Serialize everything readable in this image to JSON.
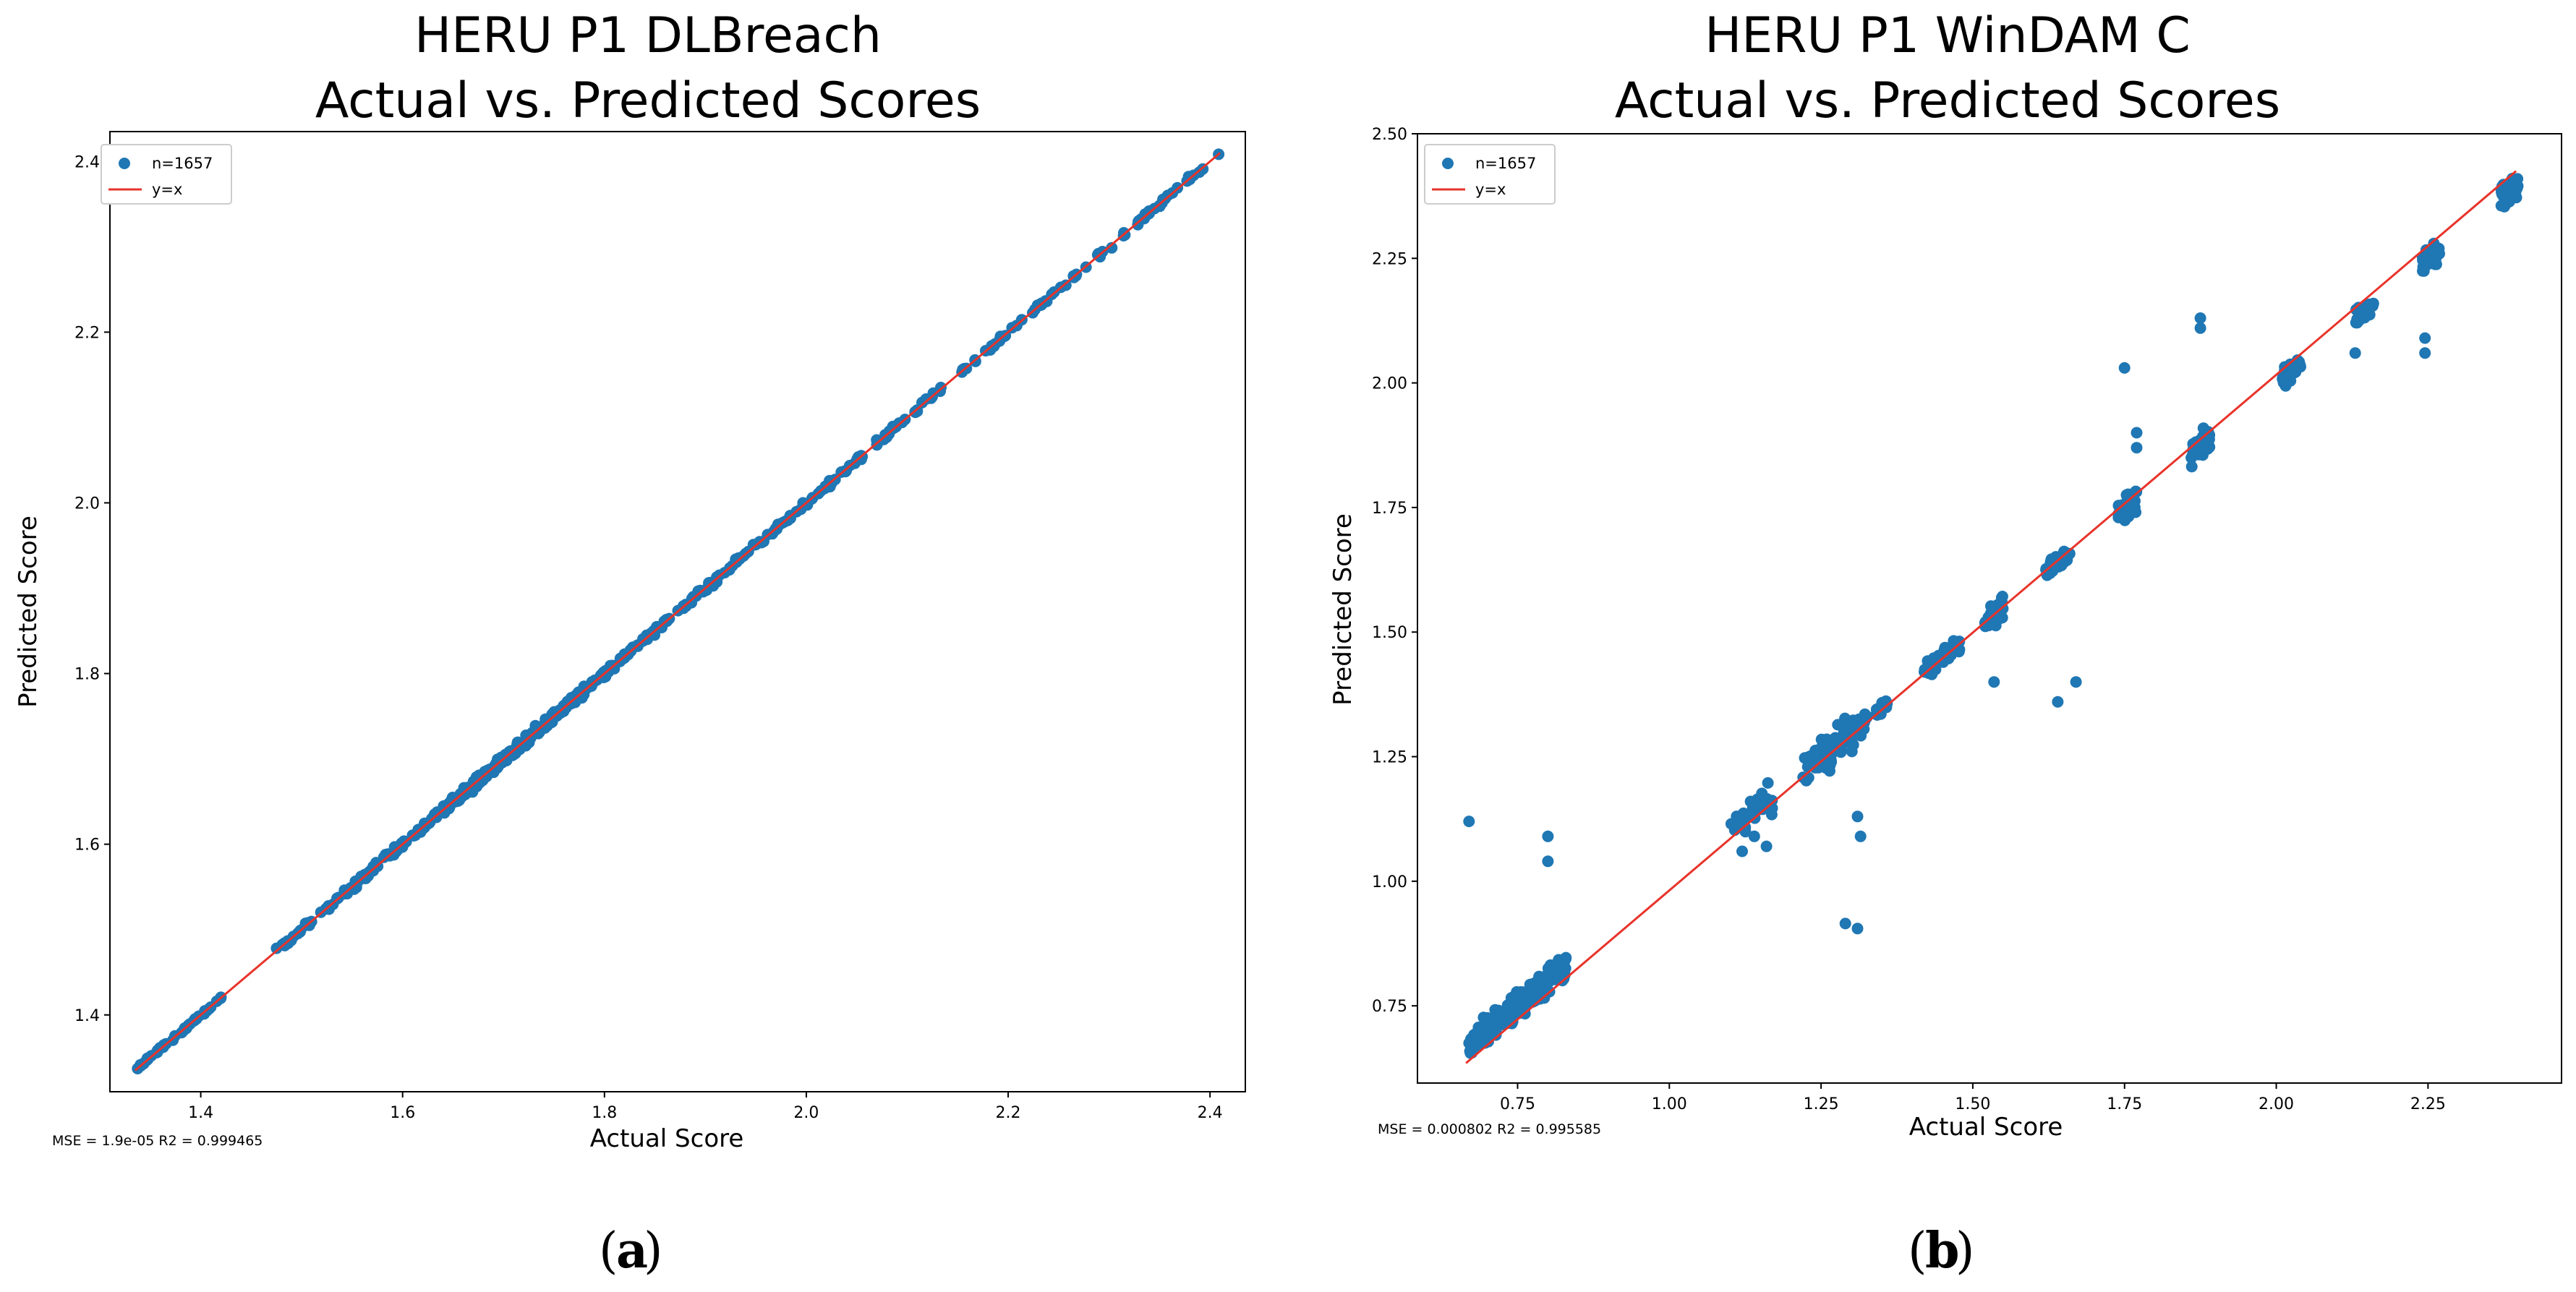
{
  "chart_data": [
    {
      "type": "scatter",
      "title_line1": "HERU P1 DLBreach",
      "title_line2": "Actual vs. Predicted Scores",
      "xlabel": "Actual Score",
      "ylabel": "Predicted Score",
      "xlim": [
        1.31,
        2.435
      ],
      "ylim": [
        1.31,
        2.435
      ],
      "xticks": [
        1.4,
        1.6,
        1.8,
        2.0,
        2.2,
        2.4
      ],
      "xtick_labels": [
        "1.4",
        "1.6",
        "1.8",
        "2.0",
        "2.2",
        "2.4"
      ],
      "yticks": [
        1.4,
        1.6,
        1.8,
        2.0,
        2.2,
        2.4
      ],
      "ytick_labels": [
        "1.4",
        "1.6",
        "1.8",
        "2.0",
        "2.2",
        "2.4"
      ],
      "legend": {
        "points_label": "n=1657",
        "line_label": "y=x",
        "location": "upper-left"
      },
      "metrics_text": "MSE = 1.9e-05 R2 = 0.999465",
      "caption_letter": "a",
      "point_color": "#1f77b4",
      "line_color": "#e8332a",
      "reference_line": {
        "from": [
          1.335,
          1.335
        ],
        "to": [
          2.41,
          2.41
        ]
      },
      "clusters": [
        {
          "x": [
            1.335,
            1.42
          ],
          "spread": 0.004,
          "count": 40
        },
        {
          "x": [
            1.475,
            1.55
          ],
          "spread": 0.005,
          "count": 35
        },
        {
          "x": [
            1.55,
            1.64
          ],
          "spread": 0.007,
          "count": 70
        },
        {
          "x": [
            1.64,
            1.78
          ],
          "spread": 0.009,
          "count": 210
        },
        {
          "x": [
            1.78,
            1.86
          ],
          "spread": 0.006,
          "count": 60
        },
        {
          "x": [
            1.86,
            2.0
          ],
          "spread": 0.006,
          "count": 70
        },
        {
          "x": [
            2.0,
            2.12
          ],
          "spread": 0.006,
          "count": 45
        },
        {
          "x": [
            2.12,
            2.25
          ],
          "spread": 0.005,
          "count": 35
        },
        {
          "x": [
            2.25,
            2.41
          ],
          "spread": 0.005,
          "count": 40
        }
      ]
    },
    {
      "type": "scatter",
      "title_line1": "HERU P1 WinDAM C",
      "title_line2": "Actual vs. Predicted Scores",
      "xlabel": "Actual Score",
      "ylabel": "Predicted Score",
      "xlim": [
        0.585,
        2.47
      ],
      "ylim": [
        0.595,
        2.5
      ],
      "xticks": [
        0.75,
        1.0,
        1.25,
        1.5,
        1.75,
        2.0,
        2.25
      ],
      "xtick_labels": [
        "0.75",
        "1.00",
        "1.25",
        "1.50",
        "1.75",
        "2.00",
        "2.25"
      ],
      "yticks": [
        0.75,
        1.0,
        1.25,
        1.5,
        1.75,
        2.0,
        2.25,
        2.5
      ],
      "ytick_labels": [
        "0.75",
        "1.00",
        "1.25",
        "1.50",
        "1.75",
        "2.00",
        "2.25",
        "2.50"
      ],
      "legend": {
        "points_label": "n=1657",
        "line_label": "y=x",
        "location": "upper-left"
      },
      "metrics_text": "MSE = 0.000802 R2 = 0.995585",
      "caption_letter": "b",
      "point_color": "#1f77b4",
      "line_color": "#e8332a",
      "reference_line": {
        "from": [
          0.665,
          0.635
        ],
        "to": [
          2.395,
          2.425
        ]
      },
      "clusters": [
        {
          "x": [
            0.67,
            0.83
          ],
          "spread": 0.035,
          "count": 260
        },
        {
          "x": [
            1.1,
            1.17
          ],
          "spread": 0.04,
          "count": 35
        },
        {
          "x": [
            1.22,
            1.33
          ],
          "spread": 0.045,
          "count": 110
        },
        {
          "x": [
            1.34,
            1.36
          ],
          "spread": 0.02,
          "count": 20
        },
        {
          "x": [
            1.42,
            1.48
          ],
          "spread": 0.025,
          "count": 45
        },
        {
          "x": [
            1.52,
            1.55
          ],
          "spread": 0.03,
          "count": 35
        },
        {
          "x": [
            1.62,
            1.66
          ],
          "spread": 0.025,
          "count": 35
        },
        {
          "x": [
            1.74,
            1.77
          ],
          "spread": 0.03,
          "count": 50
        },
        {
          "x": [
            1.86,
            1.89
          ],
          "spread": 0.035,
          "count": 60
        },
        {
          "x": [
            2.01,
            2.04
          ],
          "spread": 0.025,
          "count": 45
        },
        {
          "x": [
            2.13,
            2.16
          ],
          "spread": 0.025,
          "count": 30
        },
        {
          "x": [
            2.24,
            2.27
          ],
          "spread": 0.035,
          "count": 45
        },
        {
          "x": [
            2.37,
            2.4
          ],
          "spread": 0.03,
          "count": 45
        }
      ],
      "outliers": [
        [
          0.67,
          1.12
        ],
        [
          0.8,
          1.09
        ],
        [
          0.8,
          1.04
        ],
        [
          1.29,
          0.915
        ],
        [
          1.31,
          0.905
        ],
        [
          1.31,
          1.13
        ],
        [
          1.315,
          1.09
        ],
        [
          1.64,
          1.36
        ],
        [
          1.67,
          1.4
        ],
        [
          1.535,
          1.4
        ],
        [
          1.875,
          2.13
        ],
        [
          1.875,
          2.11
        ],
        [
          1.75,
          2.03
        ],
        [
          2.245,
          2.09
        ],
        [
          2.245,
          2.06
        ],
        [
          2.13,
          2.06
        ],
        [
          1.12,
          1.06
        ],
        [
          1.16,
          1.07
        ],
        [
          1.14,
          1.09
        ],
        [
          1.77,
          1.9
        ],
        [
          1.77,
          1.87
        ]
      ]
    }
  ]
}
